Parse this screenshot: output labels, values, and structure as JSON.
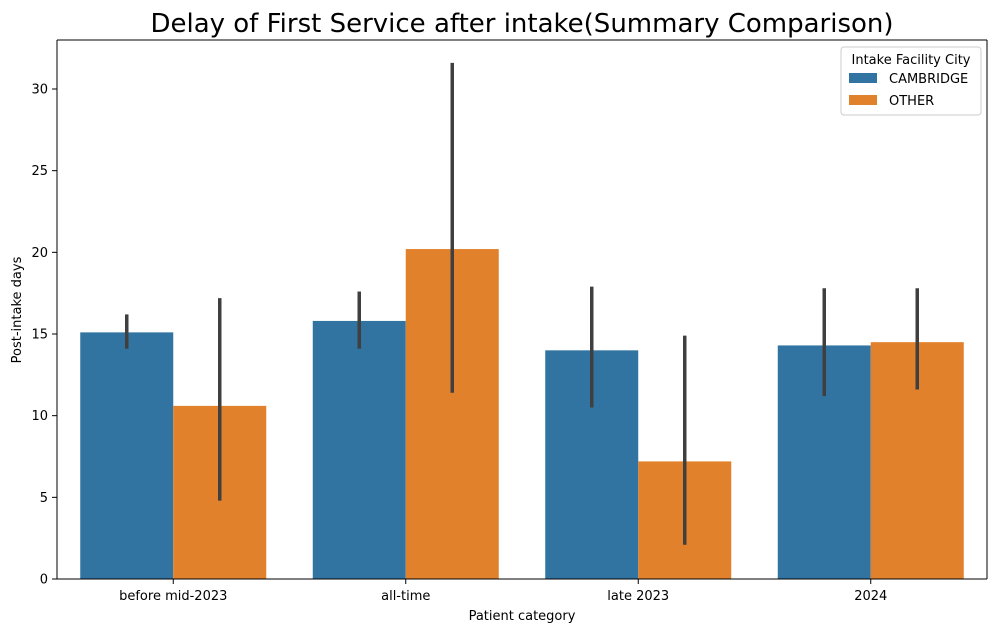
{
  "chart_data": {
    "type": "bar",
    "title": "Delay of First Service after intake(Summary Comparison)",
    "xlabel": "Patient category",
    "ylabel": "Post-intake days",
    "categories": [
      "before mid-2023",
      "all-time",
      "late 2023",
      "2024"
    ],
    "ylim": [
      0,
      33
    ],
    "yticks": [
      0,
      5,
      10,
      15,
      20,
      25,
      30
    ],
    "grid": false,
    "legend": {
      "title": "Intake Facility City",
      "placement": "top-right"
    },
    "series": [
      {
        "name": "CAMBRIDGE",
        "color": "#3274a1",
        "values": [
          15.1,
          15.8,
          14.0,
          14.3
        ],
        "error_low": [
          14.1,
          14.1,
          10.5,
          11.2
        ],
        "error_high": [
          16.2,
          17.6,
          17.9,
          17.8
        ]
      },
      {
        "name": "OTHER",
        "color": "#e1812c",
        "values": [
          10.6,
          20.2,
          7.2,
          14.5
        ],
        "error_low": [
          4.8,
          11.4,
          2.1,
          11.6
        ],
        "error_high": [
          17.2,
          31.6,
          14.9,
          17.8
        ]
      }
    ],
    "error_bar_color": "#3f3f3f"
  }
}
